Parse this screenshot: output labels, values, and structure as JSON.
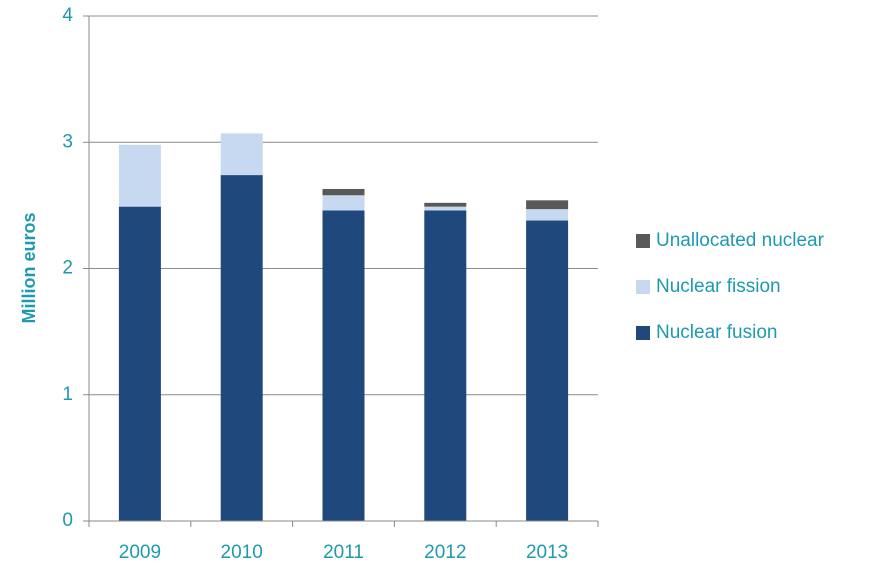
{
  "chart_data": {
    "type": "stacked-bar",
    "y_label": "Million euros",
    "categories": [
      "2009",
      "2010",
      "2011",
      "2012",
      "2013"
    ],
    "series": [
      {
        "name": "Nuclear fusion",
        "color": "#1f497d",
        "values": [
          2.49,
          2.74,
          2.46,
          2.46,
          2.38
        ]
      },
      {
        "name": "Nuclear fission",
        "color": "#c6d9f1",
        "values": [
          0.49,
          0.33,
          0.12,
          0.03,
          0.09
        ]
      },
      {
        "name": "Unallocated nuclear",
        "color": "#595959",
        "values": [
          0,
          0,
          0.05,
          0.03,
          0.07
        ]
      }
    ],
    "ylim": [
      0,
      4
    ],
    "yticks": [
      0,
      1,
      2,
      3,
      4
    ],
    "grid": true,
    "legend": "right"
  }
}
